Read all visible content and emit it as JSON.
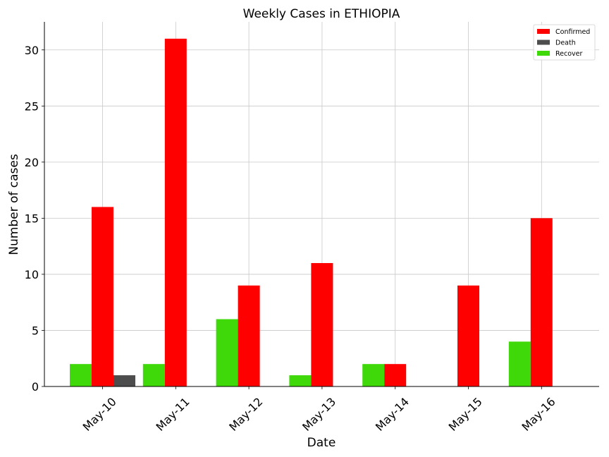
{
  "chart_data": {
    "type": "bar",
    "title": "Weekly Cases in ETHIOPIA",
    "xlabel": "Date",
    "ylabel": "Number of cases",
    "categories": [
      "May-10",
      "May-11",
      "May-12",
      "May-13",
      "May-14",
      "May-15",
      "May-16"
    ],
    "series": [
      {
        "name": "Confirmed",
        "color": "#ff0000",
        "values": [
          16,
          31,
          9,
          11,
          2,
          9,
          15
        ]
      },
      {
        "name": "Death",
        "color": "#4d4d4d",
        "values": [
          1,
          0,
          0,
          0,
          0,
          0,
          0
        ]
      },
      {
        "name": "Recover",
        "color": "#3fd90a",
        "values": [
          2,
          2,
          6,
          1,
          2,
          0,
          4
        ]
      }
    ],
    "ylim": [
      0,
      32.5
    ],
    "yticks": [
      0,
      5,
      10,
      15,
      20,
      25,
      30
    ],
    "grid": true,
    "legend_position": "top-right"
  }
}
